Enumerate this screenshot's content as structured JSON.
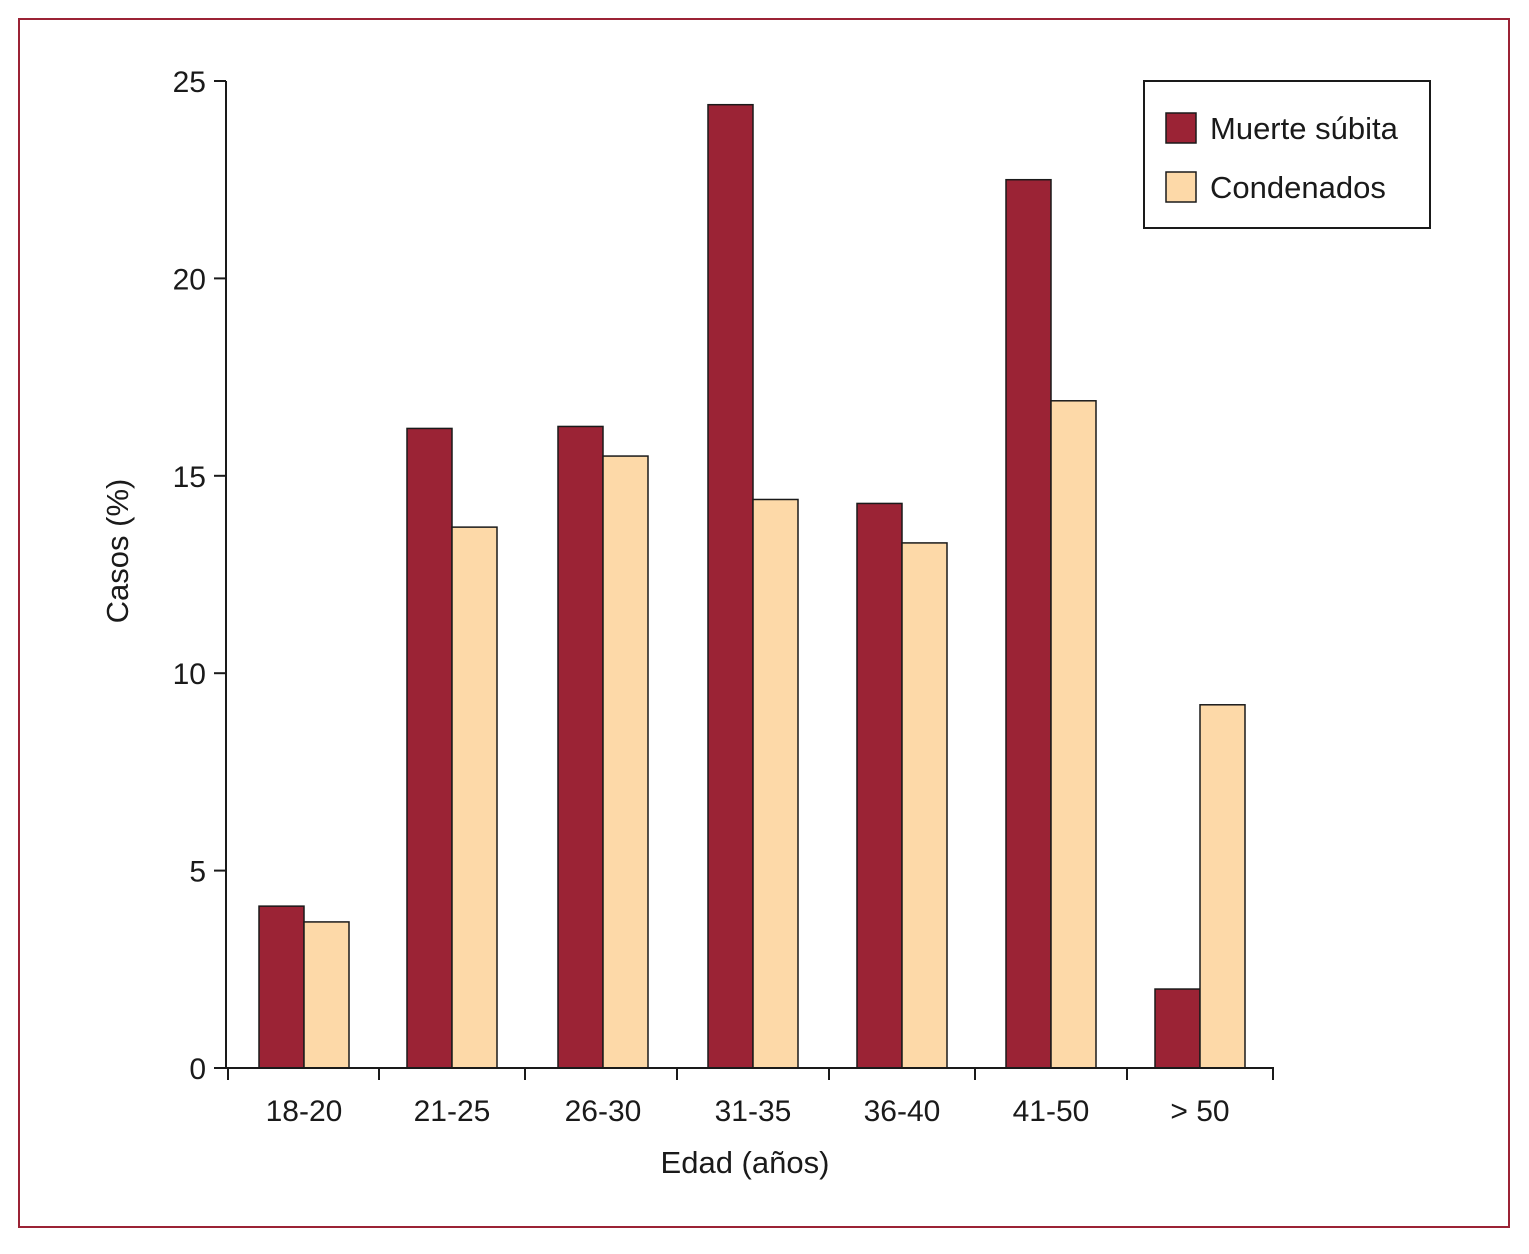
{
  "chart_data": {
    "type": "bar",
    "title": "",
    "xlabel": "Edad (años)",
    "ylabel": "Casos (%)",
    "ylim": [
      0,
      25
    ],
    "yticks": [
      0,
      5,
      10,
      15,
      20,
      25
    ],
    "categories": [
      "18-20",
      "21-25",
      "26-30",
      "31-35",
      "36-40",
      "41-50",
      "> 50"
    ],
    "series": [
      {
        "name": "Muerte súbita",
        "color": "#9b2335",
        "values": [
          4.1,
          16.2,
          16.25,
          24.4,
          14.3,
          22.5,
          2.0
        ]
      },
      {
        "name": "Condenados",
        "color": "#fdd9a8",
        "values": [
          3.7,
          13.7,
          15.5,
          14.4,
          13.3,
          16.9,
          9.2
        ]
      }
    ],
    "legend_position": "top-right",
    "grid": false
  },
  "colors": {
    "frame": "#9b2335",
    "axis": "#1a1a1a"
  }
}
